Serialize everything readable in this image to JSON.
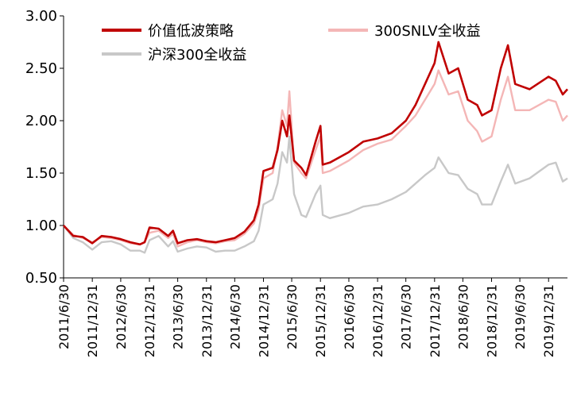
{
  "chart_data": {
    "type": "line",
    "title": "",
    "xlabel": "",
    "ylabel": "",
    "ylim": [
      0.5,
      3.0
    ],
    "yticks": [
      "0.50",
      "1.00",
      "1.50",
      "2.00",
      "2.50",
      "3.00"
    ],
    "xticks": [
      "2011/6/30",
      "2011/12/31",
      "2012/6/30",
      "2012/12/31",
      "2013/6/30",
      "2013/12/31",
      "2014/6/30",
      "2014/12/31",
      "2015/6/30",
      "2015/12/31",
      "2016/6/30",
      "2016/12/31",
      "2017/6/30",
      "2017/12/31",
      "2018/6/30",
      "2018/12/31",
      "2019/6/30",
      "2019/12/31"
    ],
    "xrange": [
      "2011/6/30",
      "2020/4/30"
    ],
    "grid": false,
    "legend": "top",
    "series": [
      {
        "name": "价值低波策略",
        "color": "#c00000",
        "points": [
          [
            "2011/6/30",
            1.0
          ],
          [
            "2011/8/31",
            0.9
          ],
          [
            "2011/10/31",
            0.89
          ],
          [
            "2011/12/31",
            0.83
          ],
          [
            "2012/2/29",
            0.9
          ],
          [
            "2012/4/30",
            0.89
          ],
          [
            "2012/6/30",
            0.87
          ],
          [
            "2012/8/31",
            0.84
          ],
          [
            "2012/10/31",
            0.82
          ],
          [
            "2012/11/30",
            0.84
          ],
          [
            "2012/12/31",
            0.98
          ],
          [
            "2013/2/28",
            0.97
          ],
          [
            "2013/4/30",
            0.9
          ],
          [
            "2013/5/31",
            0.95
          ],
          [
            "2013/6/30",
            0.83
          ],
          [
            "2013/8/31",
            0.86
          ],
          [
            "2013/10/31",
            0.87
          ],
          [
            "2013/12/31",
            0.85
          ],
          [
            "2014/2/28",
            0.84
          ],
          [
            "2014/4/30",
            0.86
          ],
          [
            "2014/6/30",
            0.88
          ],
          [
            "2014/8/31",
            0.94
          ],
          [
            "2014/10/31",
            1.05
          ],
          [
            "2014/11/30",
            1.2
          ],
          [
            "2014/12/31",
            1.52
          ],
          [
            "2015/2/28",
            1.55
          ],
          [
            "2015/3/31",
            1.72
          ],
          [
            "2015/4/30",
            2.0
          ],
          [
            "2015/5/31",
            1.85
          ],
          [
            "2015/6/15",
            2.05
          ],
          [
            "2015/7/15",
            1.62
          ],
          [
            "2015/8/31",
            1.55
          ],
          [
            "2015/9/30",
            1.48
          ],
          [
            "2015/11/30",
            1.8
          ],
          [
            "2015/12/31",
            1.95
          ],
          [
            "2016/1/15",
            1.58
          ],
          [
            "2016/2/29",
            1.6
          ],
          [
            "2016/6/30",
            1.7
          ],
          [
            "2016/9/30",
            1.8
          ],
          [
            "2016/12/31",
            1.83
          ],
          [
            "2017/3/31",
            1.88
          ],
          [
            "2017/6/30",
            2.0
          ],
          [
            "2017/8/31",
            2.15
          ],
          [
            "2017/10/31",
            2.35
          ],
          [
            "2017/12/31",
            2.55
          ],
          [
            "2018/1/25",
            2.75
          ],
          [
            "2018/3/31",
            2.45
          ],
          [
            "2018/5/31",
            2.5
          ],
          [
            "2018/7/31",
            2.2
          ],
          [
            "2018/9/30",
            2.15
          ],
          [
            "2018/10/31",
            2.05
          ],
          [
            "2018/12/31",
            2.1
          ],
          [
            "2019/2/28",
            2.5
          ],
          [
            "2019/4/15",
            2.72
          ],
          [
            "2019/5/31",
            2.35
          ],
          [
            "2019/8/31",
            2.3
          ],
          [
            "2019/12/31",
            2.42
          ],
          [
            "2020/2/15",
            2.38
          ],
          [
            "2020/3/31",
            2.25
          ],
          [
            "2020/4/30",
            2.3
          ]
        ]
      },
      {
        "name": "300SNLV全收益",
        "color": "#f4b6b6",
        "points": [
          [
            "2011/6/30",
            1.0
          ],
          [
            "2011/8/31",
            0.91
          ],
          [
            "2011/10/31",
            0.88
          ],
          [
            "2011/12/31",
            0.84
          ],
          [
            "2012/2/29",
            0.89
          ],
          [
            "2012/4/30",
            0.88
          ],
          [
            "2012/6/30",
            0.86
          ],
          [
            "2012/8/31",
            0.83
          ],
          [
            "2012/10/31",
            0.82
          ],
          [
            "2012/11/30",
            0.84
          ],
          [
            "2012/12/31",
            0.93
          ],
          [
            "2013/2/28",
            0.95
          ],
          [
            "2013/4/30",
            0.88
          ],
          [
            "2013/5/31",
            0.92
          ],
          [
            "2013/6/30",
            0.8
          ],
          [
            "2013/8/31",
            0.84
          ],
          [
            "2013/10/31",
            0.86
          ],
          [
            "2013/12/31",
            0.84
          ],
          [
            "2014/2/28",
            0.83
          ],
          [
            "2014/4/30",
            0.85
          ],
          [
            "2014/6/30",
            0.86
          ],
          [
            "2014/8/31",
            0.92
          ],
          [
            "2014/10/31",
            1.02
          ],
          [
            "2014/11/30",
            1.15
          ],
          [
            "2014/12/31",
            1.45
          ],
          [
            "2015/2/28",
            1.5
          ],
          [
            "2015/3/31",
            1.75
          ],
          [
            "2015/4/30",
            2.1
          ],
          [
            "2015/5/31",
            1.95
          ],
          [
            "2015/6/15",
            2.28
          ],
          [
            "2015/7/15",
            1.6
          ],
          [
            "2015/8/31",
            1.5
          ],
          [
            "2015/9/30",
            1.45
          ],
          [
            "2015/11/30",
            1.72
          ],
          [
            "2015/12/31",
            1.85
          ],
          [
            "2016/1/15",
            1.5
          ],
          [
            "2016/2/29",
            1.52
          ],
          [
            "2016/6/30",
            1.62
          ],
          [
            "2016/9/30",
            1.72
          ],
          [
            "2016/12/31",
            1.78
          ],
          [
            "2017/3/31",
            1.82
          ],
          [
            "2017/6/30",
            1.95
          ],
          [
            "2017/8/31",
            2.05
          ],
          [
            "2017/10/31",
            2.2
          ],
          [
            "2017/12/31",
            2.35
          ],
          [
            "2018/1/25",
            2.48
          ],
          [
            "2018/3/31",
            2.25
          ],
          [
            "2018/5/31",
            2.28
          ],
          [
            "2018/7/31",
            2.0
          ],
          [
            "2018/9/30",
            1.9
          ],
          [
            "2018/10/31",
            1.8
          ],
          [
            "2018/12/31",
            1.85
          ],
          [
            "2019/2/28",
            2.2
          ],
          [
            "2019/4/15",
            2.42
          ],
          [
            "2019/5/31",
            2.1
          ],
          [
            "2019/8/31",
            2.1
          ],
          [
            "2019/12/31",
            2.2
          ],
          [
            "2020/2/15",
            2.18
          ],
          [
            "2020/3/31",
            2.0
          ],
          [
            "2020/4/30",
            2.05
          ]
        ]
      },
      {
        "name": "沪深300全收益",
        "color": "#c8c8c8",
        "points": [
          [
            "2011/6/30",
            1.0
          ],
          [
            "2011/8/31",
            0.88
          ],
          [
            "2011/10/31",
            0.84
          ],
          [
            "2011/12/31",
            0.77
          ],
          [
            "2012/2/29",
            0.84
          ],
          [
            "2012/4/30",
            0.85
          ],
          [
            "2012/6/30",
            0.82
          ],
          [
            "2012/8/31",
            0.76
          ],
          [
            "2012/10/31",
            0.76
          ],
          [
            "2012/11/30",
            0.74
          ],
          [
            "2012/12/31",
            0.86
          ],
          [
            "2013/2/28",
            0.9
          ],
          [
            "2013/4/30",
            0.8
          ],
          [
            "2013/5/31",
            0.85
          ],
          [
            "2013/6/30",
            0.75
          ],
          [
            "2013/8/31",
            0.78
          ],
          [
            "2013/10/31",
            0.8
          ],
          [
            "2013/12/31",
            0.79
          ],
          [
            "2014/2/28",
            0.75
          ],
          [
            "2014/4/30",
            0.76
          ],
          [
            "2014/6/30",
            0.76
          ],
          [
            "2014/8/31",
            0.8
          ],
          [
            "2014/10/31",
            0.85
          ],
          [
            "2014/11/30",
            0.95
          ],
          [
            "2014/12/31",
            1.2
          ],
          [
            "2015/2/28",
            1.25
          ],
          [
            "2015/3/31",
            1.4
          ],
          [
            "2015/4/30",
            1.7
          ],
          [
            "2015/5/31",
            1.6
          ],
          [
            "2015/6/15",
            1.85
          ],
          [
            "2015/7/15",
            1.3
          ],
          [
            "2015/8/31",
            1.1
          ],
          [
            "2015/9/30",
            1.08
          ],
          [
            "2015/11/30",
            1.3
          ],
          [
            "2015/12/31",
            1.38
          ],
          [
            "2016/1/15",
            1.1
          ],
          [
            "2016/2/29",
            1.07
          ],
          [
            "2016/6/30",
            1.12
          ],
          [
            "2016/9/30",
            1.18
          ],
          [
            "2016/12/31",
            1.2
          ],
          [
            "2017/3/31",
            1.25
          ],
          [
            "2017/6/30",
            1.32
          ],
          [
            "2017/8/31",
            1.4
          ],
          [
            "2017/10/31",
            1.48
          ],
          [
            "2017/12/31",
            1.55
          ],
          [
            "2018/1/25",
            1.65
          ],
          [
            "2018/3/31",
            1.5
          ],
          [
            "2018/5/31",
            1.48
          ],
          [
            "2018/7/31",
            1.35
          ],
          [
            "2018/9/30",
            1.3
          ],
          [
            "2018/10/31",
            1.2
          ],
          [
            "2018/12/31",
            1.2
          ],
          [
            "2019/2/28",
            1.42
          ],
          [
            "2019/4/15",
            1.58
          ],
          [
            "2019/5/31",
            1.4
          ],
          [
            "2019/8/31",
            1.45
          ],
          [
            "2019/12/31",
            1.58
          ],
          [
            "2020/2/15",
            1.6
          ],
          [
            "2020/3/31",
            1.42
          ],
          [
            "2020/4/30",
            1.45
          ]
        ]
      }
    ]
  }
}
